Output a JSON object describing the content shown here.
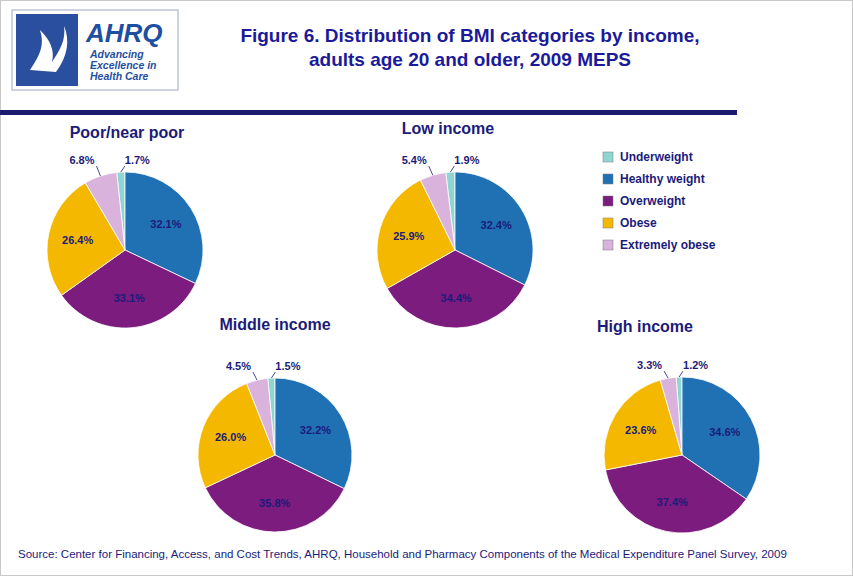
{
  "title": [
    "Figure 6. Distribution of BMI categories by income,",
    "adults age 20 and older, 2009 MEPS"
  ],
  "source": "Source: Center for Financing, Access, and Cost Trends, AHRQ, Household and Pharmacy Components of the Medical Expenditure Panel Survey, 2009",
  "logo": {
    "name": "AHRQ",
    "tagline": [
      "Advancing",
      "Excellence in",
      "Health Care"
    ]
  },
  "chart_data": [
    {
      "type": "pie",
      "title": "Poor/near poor",
      "categories": [
        "Underweight",
        "Healthy weight",
        "Overweight",
        "Obese",
        "Extremely obese"
      ],
      "values": [
        1.7,
        32.1,
        33.1,
        26.4,
        6.8
      ],
      "value_labels": [
        "1.7%",
        "32.1%",
        "33.1%",
        "26.4%",
        "6.8%"
      ],
      "colors": [
        "#8fd6d2",
        "#2070b4",
        "#7b1c7e",
        "#f5b800",
        "#d9b3dc"
      ],
      "data_labels": true,
      "legend": "right"
    },
    {
      "type": "pie",
      "title": "Low income",
      "categories": [
        "Underweight",
        "Healthy weight",
        "Overweight",
        "Obese",
        "Extremely obese"
      ],
      "values": [
        1.9,
        32.4,
        34.4,
        25.9,
        5.4
      ],
      "value_labels": [
        "1.9%",
        "32.4%",
        "34.4%",
        "25.9%",
        "5.4%"
      ],
      "colors": [
        "#8fd6d2",
        "#2070b4",
        "#7b1c7e",
        "#f5b800",
        "#d9b3dc"
      ],
      "data_labels": true
    },
    {
      "type": "pie",
      "title": "Middle income",
      "categories": [
        "Underweight",
        "Healthy weight",
        "Overweight",
        "Obese",
        "Extremely obese"
      ],
      "values": [
        1.5,
        32.2,
        35.8,
        26.0,
        4.5
      ],
      "value_labels": [
        "1.5%",
        "32.2%",
        "35.8%",
        "26.0%",
        "4.5%"
      ],
      "colors": [
        "#8fd6d2",
        "#2070b4",
        "#7b1c7e",
        "#f5b800",
        "#d9b3dc"
      ],
      "data_labels": true
    },
    {
      "type": "pie",
      "title": "High income",
      "categories": [
        "Underweight",
        "Healthy weight",
        "Overweight",
        "Obese",
        "Extremely obese"
      ],
      "values": [
        1.2,
        34.6,
        37.4,
        23.6,
        3.3
      ],
      "value_labels": [
        "1.2%",
        "34.6%",
        "37.4%",
        "23.6%",
        "3.3%"
      ],
      "colors": [
        "#8fd6d2",
        "#2070b4",
        "#7b1c7e",
        "#f5b800",
        "#d9b3dc"
      ],
      "data_labels": true
    }
  ]
}
